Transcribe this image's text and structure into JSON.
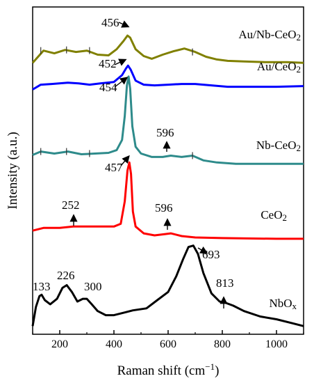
{
  "chart_data": {
    "type": "line",
    "xlabel": "Raman shift (cm",
    "xlabel_sup": "−1",
    "xlabel_end": ")",
    "ylabel": "Intensity (a.u.)",
    "xlim": [
      100,
      1100
    ],
    "xticks": [
      "200",
      "400",
      "600",
      "800",
      "1000"
    ],
    "x_tick_values": [
      200,
      400,
      600,
      800,
      1000
    ],
    "grid": false,
    "legend": "none",
    "series": [
      {
        "name": "Au/Nb-CeO2",
        "label_main": "Au/Nb-CeO",
        "label_sub": "2",
        "color": "#808000",
        "baseline": 80,
        "points": [
          [
            100,
            82
          ],
          [
            140,
            64
          ],
          [
            180,
            68
          ],
          [
            220,
            63
          ],
          [
            260,
            66
          ],
          [
            300,
            64
          ],
          [
            340,
            70
          ],
          [
            380,
            71
          ],
          [
            410,
            62
          ],
          [
            435,
            50
          ],
          [
            450,
            42
          ],
          [
            460,
            45
          ],
          [
            480,
            62
          ],
          [
            510,
            72
          ],
          [
            540,
            76
          ],
          [
            580,
            70
          ],
          [
            620,
            65
          ],
          [
            660,
            61
          ],
          [
            700,
            66
          ],
          [
            740,
            73
          ],
          [
            780,
            77
          ],
          [
            820,
            79
          ],
          [
            880,
            80
          ],
          [
            960,
            81
          ],
          [
            1040,
            81
          ],
          [
            1100,
            82
          ]
        ],
        "markers": [
          130,
          225,
          310,
          690
        ]
      },
      {
        "name": "Au/CeO2",
        "label_main": "Au/CeO",
        "label_sub": "2",
        "color": "#0000ff",
        "baseline": 118,
        "points": [
          [
            100,
            121
          ],
          [
            130,
            114
          ],
          [
            170,
            113
          ],
          [
            230,
            111
          ],
          [
            270,
            112
          ],
          [
            310,
            114
          ],
          [
            350,
            112
          ],
          [
            400,
            110
          ],
          [
            430,
            100
          ],
          [
            445,
            90
          ],
          [
            452,
            86
          ],
          [
            462,
            92
          ],
          [
            480,
            108
          ],
          [
            510,
            114
          ],
          [
            550,
            115
          ],
          [
            600,
            114
          ],
          [
            650,
            113
          ],
          [
            700,
            113
          ],
          [
            760,
            115
          ],
          [
            820,
            117
          ],
          [
            900,
            117
          ],
          [
            1000,
            117
          ],
          [
            1100,
            116
          ]
        ],
        "markers": []
      },
      {
        "name": "Nb-CeO2",
        "label_main": "Nb-CeO",
        "label_sub": "2",
        "color": "#2e8b8b",
        "baseline": 230,
        "points": [
          [
            100,
            217
          ],
          [
            130,
            212
          ],
          [
            180,
            215
          ],
          [
            230,
            212
          ],
          [
            280,
            216
          ],
          [
            330,
            215
          ],
          [
            380,
            214
          ],
          [
            410,
            210
          ],
          [
            430,
            195
          ],
          [
            440,
            160
          ],
          [
            448,
            115
          ],
          [
            454,
            102
          ],
          [
            460,
            120
          ],
          [
            468,
            175
          ],
          [
            480,
            205
          ],
          [
            500,
            215
          ],
          [
            540,
            220
          ],
          [
            580,
            220
          ],
          [
            610,
            218
          ],
          [
            650,
            220
          ],
          [
            690,
            218
          ],
          [
            730,
            225
          ],
          [
            780,
            228
          ],
          [
            850,
            230
          ],
          [
            1000,
            230
          ],
          [
            1100,
            230
          ]
        ],
        "markers": [
          130,
          225,
          310,
          690
        ]
      },
      {
        "name": "CeO2",
        "label_main": "CeO",
        "label_sub": "2",
        "color": "#ff0000",
        "baseline": 340,
        "points": [
          [
            100,
            328
          ],
          [
            140,
            324
          ],
          [
            200,
            324
          ],
          [
            250,
            322
          ],
          [
            300,
            322
          ],
          [
            350,
            322
          ],
          [
            400,
            322
          ],
          [
            425,
            318
          ],
          [
            440,
            285
          ],
          [
            450,
            240
          ],
          [
            457,
            228
          ],
          [
            463,
            245
          ],
          [
            470,
            300
          ],
          [
            480,
            322
          ],
          [
            510,
            332
          ],
          [
            550,
            335
          ],
          [
            590,
            333
          ],
          [
            610,
            332
          ],
          [
            650,
            336
          ],
          [
            700,
            338
          ],
          [
            800,
            339
          ],
          [
            1000,
            340
          ],
          [
            1100,
            340
          ]
        ],
        "markers": []
      },
      {
        "name": "NbOx",
        "label_main": "NbO",
        "label_sub": "x",
        "color": "#000000",
        "baseline": 470,
        "points": [
          [
            100,
            468
          ],
          [
            112,
            440
          ],
          [
            125,
            424
          ],
          [
            133,
            422
          ],
          [
            145,
            430
          ],
          [
            165,
            436
          ],
          [
            190,
            428
          ],
          [
            210,
            412
          ],
          [
            226,
            408
          ],
          [
            245,
            418
          ],
          [
            265,
            432
          ],
          [
            285,
            428
          ],
          [
            300,
            428
          ],
          [
            318,
            436
          ],
          [
            340,
            446
          ],
          [
            370,
            452
          ],
          [
            400,
            452
          ],
          [
            440,
            448
          ],
          [
            470,
            445
          ],
          [
            520,
            442
          ],
          [
            560,
            430
          ],
          [
            600,
            418
          ],
          [
            630,
            395
          ],
          [
            655,
            370
          ],
          [
            675,
            352
          ],
          [
            693,
            350
          ],
          [
            710,
            362
          ],
          [
            730,
            390
          ],
          [
            760,
            420
          ],
          [
            790,
            432
          ],
          [
            813,
            434
          ],
          [
            840,
            438
          ],
          [
            880,
            446
          ],
          [
            940,
            454
          ],
          [
            1000,
            458
          ],
          [
            1060,
            464
          ],
          [
            1100,
            468
          ]
        ],
        "markers": []
      }
    ],
    "annotations": [
      {
        "text": "456",
        "x": 456,
        "series": "Au/Nb-CeO2"
      },
      {
        "text": "452",
        "x": 452,
        "series": "Au/CeO2"
      },
      {
        "text": "454",
        "x": 454,
        "series": "Nb-CeO2"
      },
      {
        "text": "596",
        "x": 596,
        "series": "Nb-CeO2"
      },
      {
        "text": "457",
        "x": 457,
        "series": "CeO2"
      },
      {
        "text": "252",
        "x": 252,
        "series": "CeO2"
      },
      {
        "text": "596",
        "x": 596,
        "series": "CeO2"
      },
      {
        "text": "693",
        "x": 693,
        "series": "NbOx"
      },
      {
        "text": "133",
        "x": 133,
        "series": "NbOx"
      },
      {
        "text": "226",
        "x": 226,
        "series": "NbOx"
      },
      {
        "text": "300",
        "x": 300,
        "series": "NbOx"
      },
      {
        "text": "813",
        "x": 813,
        "series": "NbOx"
      }
    ]
  }
}
